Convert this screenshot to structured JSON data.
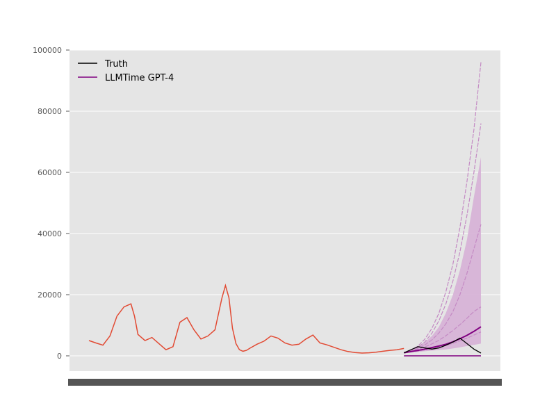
{
  "chart_data": {
    "type": "line",
    "title": "",
    "xlabel": "",
    "ylabel": "",
    "ylim": [
      -5000,
      100000
    ],
    "yticks": [
      0,
      20000,
      40000,
      60000,
      80000,
      100000
    ],
    "ytick_labels": [
      "0",
      "20000",
      "40000",
      "60000",
      "80000",
      "100000"
    ],
    "x_tick_labels_overlapping": true,
    "grid": true,
    "legend_placement": "upper-left",
    "legend": [
      "Truth",
      "LLMTime GPT-4"
    ],
    "colors": {
      "history": "#e24a33",
      "truth": "#000000",
      "forecast": "#800080",
      "forecast_band": "#d6b0d6",
      "background": "#e5e5e5",
      "grid": "#ffffff"
    },
    "history": {
      "x": [
        0,
        10,
        20,
        30,
        40,
        50,
        60,
        65,
        70,
        80,
        90,
        100,
        110,
        120,
        130,
        140,
        150,
        160,
        170,
        180,
        190,
        195,
        200,
        205,
        210,
        215,
        220,
        225,
        230,
        240,
        250,
        260,
        270,
        280,
        290,
        300,
        310,
        320,
        330,
        340,
        350,
        360,
        370,
        380,
        390,
        400,
        410,
        420,
        430,
        440,
        450
      ],
      "y": [
        5000,
        4200,
        3500,
        6500,
        13000,
        16000,
        17000,
        13000,
        7000,
        5000,
        6000,
        4000,
        2000,
        3000,
        11000,
        12500,
        8500,
        5500,
        6500,
        8500,
        19000,
        23000,
        19000,
        9000,
        4000,
        2000,
        1500,
        1800,
        2500,
        3800,
        4800,
        6500,
        5800,
        4200,
        3500,
        3800,
        5500,
        6800,
        4200,
        3600,
        2800,
        2000,
        1400,
        1100,
        900,
        1000,
        1200,
        1500,
        1800,
        2000,
        2400
      ]
    },
    "truth": {
      "name": "Truth",
      "x": [
        450,
        460,
        470,
        480,
        490,
        500,
        510,
        520,
        530,
        540,
        550,
        560
      ],
      "y": [
        1000,
        2000,
        3000,
        2600,
        2200,
        2600,
        3500,
        4500,
        5800,
        4000,
        2200,
        900
      ]
    },
    "forecast": {
      "name": "LLMTime GPT-4",
      "x": [
        450,
        460,
        470,
        480,
        490,
        500,
        510,
        520,
        530,
        540,
        550,
        560
      ],
      "median": [
        1000,
        1400,
        1800,
        2200,
        2700,
        3200,
        3800,
        4600,
        5600,
        6700,
        8000,
        9500
      ],
      "lower": [
        900,
        1100,
        1300,
        1500,
        1700,
        1900,
        2100,
        2400,
        2800,
        3200,
        3600,
        4000
      ],
      "upper": [
        1200,
        2000,
        3000,
        4500,
        6500,
        9500,
        14000,
        20000,
        28000,
        38000,
        52000,
        65000
      ],
      "samples": [
        [
          1000,
          1600,
          2400,
          3600,
          5200,
          7500,
          10500,
          14500,
          20000,
          27000,
          35000,
          43000
        ],
        [
          1000,
          1800,
          3200,
          5500,
          9000,
          14000,
          21000,
          30000,
          42000,
          57000,
          74000,
          96000
        ],
        [
          1000,
          1700,
          2800,
          4600,
          7400,
          11500,
          17000,
          24500,
          34000,
          46000,
          60000,
          76000
        ],
        [
          1000,
          1500,
          2100,
          2900,
          3900,
          5100,
          6600,
          8300,
          10200,
          12300,
          14500,
          16000
        ],
        [
          1000,
          1200,
          1500,
          1900,
          2300,
          2800,
          3400,
          4100,
          4900,
          5800,
          6800,
          7800
        ]
      ],
      "zero_line": 0
    }
  }
}
